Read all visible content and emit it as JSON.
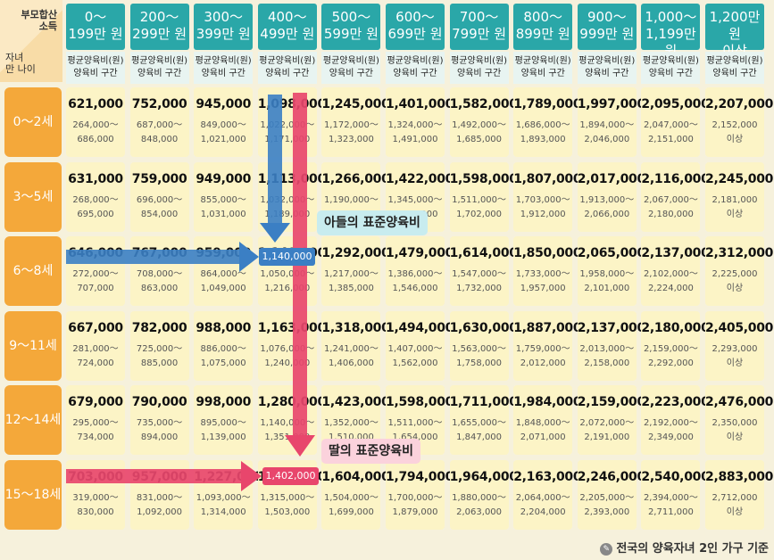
{
  "corner": {
    "top_label_1": "부모합산",
    "top_label_2": "소득",
    "bottom_label_1": "자녀",
    "bottom_label_2": "만 나이"
  },
  "income_brackets": [
    {
      "line1": "0～",
      "line2": "199만 원"
    },
    {
      "line1": "200～",
      "line2": "299만 원"
    },
    {
      "line1": "300～",
      "line2": "399만 원"
    },
    {
      "line1": "400～",
      "line2": "499만 원"
    },
    {
      "line1": "500～",
      "line2": "599만 원"
    },
    {
      "line1": "600～",
      "line2": "699만 원"
    },
    {
      "line1": "700～",
      "line2": "799만 원"
    },
    {
      "line1": "800～",
      "line2": "899만 원"
    },
    {
      "line1": "900～",
      "line2": "999만 원"
    },
    {
      "line1": "1,000～",
      "line2": "1,199만 원"
    },
    {
      "line1": "1,200만 원",
      "line2": "이상"
    }
  ],
  "subheader": {
    "line1": "평균양육비(원)",
    "line2": "양육비 구간"
  },
  "rows": [
    {
      "age": "0～2세",
      "cells": [
        {
          "avg": "621,000",
          "lo": "264,000～",
          "hi": "686,000"
        },
        {
          "avg": "752,000",
          "lo": "687,000～",
          "hi": "848,000"
        },
        {
          "avg": "945,000",
          "lo": "849,000～",
          "hi": "1,021,000"
        },
        {
          "avg": "1,098,000",
          "lo": "1,022,000～",
          "hi": "1,171,000"
        },
        {
          "avg": "1,245,000",
          "lo": "1,172,000～",
          "hi": "1,323,000"
        },
        {
          "avg": "1,401,000",
          "lo": "1,324,000～",
          "hi": "1,491,000"
        },
        {
          "avg": "1,582,000",
          "lo": "1,492,000～",
          "hi": "1,685,000"
        },
        {
          "avg": "1,789,000",
          "lo": "1,686,000～",
          "hi": "1,893,000"
        },
        {
          "avg": "1,997,000",
          "lo": "1,894,000～",
          "hi": "2,046,000"
        },
        {
          "avg": "2,095,000",
          "lo": "2,047,000～",
          "hi": "2,151,000"
        },
        {
          "avg": "2,207,000",
          "lo": "2,152,000",
          "hi": "이상"
        }
      ]
    },
    {
      "age": "3～5세",
      "cells": [
        {
          "avg": "631,000",
          "lo": "268,000～",
          "hi": "695,000"
        },
        {
          "avg": "759,000",
          "lo": "696,000～",
          "hi": "854,000"
        },
        {
          "avg": "949,000",
          "lo": "855,000～",
          "hi": "1,031,000"
        },
        {
          "avg": "1,113,000",
          "lo": "1,032,000～",
          "hi": "1,189,000"
        },
        {
          "avg": "1,266,000",
          "lo": "1,190,000～",
          "hi": "1,344,000"
        },
        {
          "avg": "1,422,000",
          "lo": "1,345,000～",
          "hi": "1,510,000"
        },
        {
          "avg": "1,598,000",
          "lo": "1,511,000～",
          "hi": "1,702,000"
        },
        {
          "avg": "1,807,000",
          "lo": "1,703,000～",
          "hi": "1,912,000"
        },
        {
          "avg": "2,017,000",
          "lo": "1,913,000～",
          "hi": "2,066,000"
        },
        {
          "avg": "2,116,000",
          "lo": "2,067,000～",
          "hi": "2,180,000"
        },
        {
          "avg": "2,245,000",
          "lo": "2,181,000",
          "hi": "이상"
        }
      ]
    },
    {
      "age": "6～8세",
      "cells": [
        {
          "avg": "646,000",
          "lo": "272,000～",
          "hi": "707,000"
        },
        {
          "avg": "767,000",
          "lo": "708,000～",
          "hi": "863,000"
        },
        {
          "avg": "959,000",
          "lo": "864,000～",
          "hi": "1,049,000"
        },
        {
          "avg": "1,140,000",
          "lo": "1,050,000～",
          "hi": "1,216,000"
        },
        {
          "avg": "1,292,000",
          "lo": "1,217,000～",
          "hi": "1,385,000"
        },
        {
          "avg": "1,479,000",
          "lo": "1,386,000～",
          "hi": "1,546,000"
        },
        {
          "avg": "1,614,000",
          "lo": "1,547,000～",
          "hi": "1,732,000"
        },
        {
          "avg": "1,850,000",
          "lo": "1,733,000～",
          "hi": "1,957,000"
        },
        {
          "avg": "2,065,000",
          "lo": "1,958,000～",
          "hi": "2,101,000"
        },
        {
          "avg": "2,137,000",
          "lo": "2,102,000～",
          "hi": "2,224,000"
        },
        {
          "avg": "2,312,000",
          "lo": "2,225,000",
          "hi": "이상"
        }
      ]
    },
    {
      "age": "9～11세",
      "cells": [
        {
          "avg": "667,000",
          "lo": "281,000～",
          "hi": "724,000"
        },
        {
          "avg": "782,000",
          "lo": "725,000～",
          "hi": "885,000"
        },
        {
          "avg": "988,000",
          "lo": "886,000～",
          "hi": "1,075,000"
        },
        {
          "avg": "1,163,000",
          "lo": "1,076,000～",
          "hi": "1,240,000"
        },
        {
          "avg": "1,318,000",
          "lo": "1,241,000～",
          "hi": "1,406,000"
        },
        {
          "avg": "1,494,000",
          "lo": "1,407,000～",
          "hi": "1,562,000"
        },
        {
          "avg": "1,630,000",
          "lo": "1,563,000～",
          "hi": "1,758,000"
        },
        {
          "avg": "1,887,000",
          "lo": "1,759,000～",
          "hi": "2,012,000"
        },
        {
          "avg": "2,137,000",
          "lo": "2,013,000～",
          "hi": "2,158,000"
        },
        {
          "avg": "2,180,000",
          "lo": "2,159,000～",
          "hi": "2,292,000"
        },
        {
          "avg": "2,405,000",
          "lo": "2,293,000",
          "hi": "이상"
        }
      ]
    },
    {
      "age": "12～14세",
      "cells": [
        {
          "avg": "679,000",
          "lo": "295,000～",
          "hi": "734,000"
        },
        {
          "avg": "790,000",
          "lo": "735,000～",
          "hi": "894,000"
        },
        {
          "avg": "998,000",
          "lo": "895,000～",
          "hi": "1,139,000"
        },
        {
          "avg": "1,280,000",
          "lo": "1,140,000～",
          "hi": "1,351,000"
        },
        {
          "avg": "1,423,000",
          "lo": "1,352,000～",
          "hi": "1,510,000"
        },
        {
          "avg": "1,598,000",
          "lo": "1,511,000～",
          "hi": "1,654,000"
        },
        {
          "avg": "1,711,000",
          "lo": "1,655,000～",
          "hi": "1,847,000"
        },
        {
          "avg": "1,984,000",
          "lo": "1,848,000～",
          "hi": "2,071,000"
        },
        {
          "avg": "2,159,000",
          "lo": "2,072,000～",
          "hi": "2,191,000"
        },
        {
          "avg": "2,223,000",
          "lo": "2,192,000～",
          "hi": "2,349,000"
        },
        {
          "avg": "2,476,000",
          "lo": "2,350,000",
          "hi": "이상"
        }
      ]
    },
    {
      "age": "15～18세",
      "cells": [
        {
          "avg": "703,000",
          "lo": "319,000～",
          "hi": "830,000"
        },
        {
          "avg": "957,000",
          "lo": "831,000～",
          "hi": "1,092,000"
        },
        {
          "avg": "1,227,000",
          "lo": "1,093,000～",
          "hi": "1,314,000"
        },
        {
          "avg": "1,402,000",
          "lo": "1,315,000～",
          "hi": "1,503,000"
        },
        {
          "avg": "1,604,000",
          "lo": "1,504,000～",
          "hi": "1,699,000"
        },
        {
          "avg": "1,794,000",
          "lo": "1,700,000～",
          "hi": "1,879,000"
        },
        {
          "avg": "1,964,000",
          "lo": "1,880,000～",
          "hi": "2,063,000"
        },
        {
          "avg": "2,163,000",
          "lo": "2,064,000～",
          "hi": "2,204,000"
        },
        {
          "avg": "2,246,000",
          "lo": "2,205,000～",
          "hi": "2,393,000"
        },
        {
          "avg": "2,540,000",
          "lo": "2,394,000～",
          "hi": "2,711,000"
        },
        {
          "avg": "2,883,000",
          "lo": "2,712,000",
          "hi": "이상"
        }
      ]
    }
  ],
  "highlights": {
    "son": {
      "value": "1,140,000",
      "callout": "아들의 표준양육비",
      "color": "#3b7fc4",
      "callout_bg": "#c8ecef"
    },
    "daughter": {
      "value": "1,402,000",
      "callout": "딸의 표준양육비",
      "color": "#e8466c",
      "callout_bg": "#fbd2dc"
    }
  },
  "footer": {
    "text": "전국의 양육자녀 2인 가구 기준",
    "icon": "pencil-icon"
  }
}
